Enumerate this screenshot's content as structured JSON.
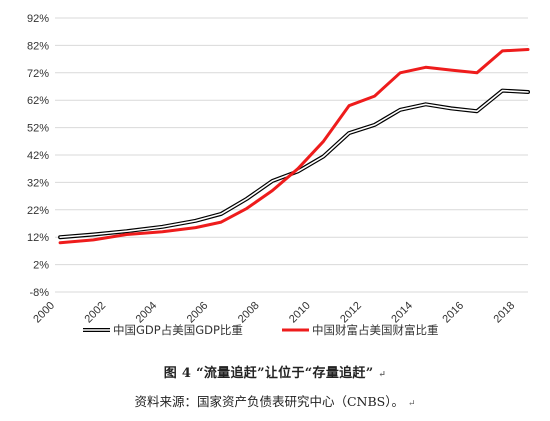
{
  "chart_data": {
    "type": "line",
    "title": "",
    "xlabel": "",
    "ylabel": "",
    "ylim": [
      -8,
      92
    ],
    "yticks": [
      -8,
      2,
      12,
      22,
      32,
      42,
      52,
      62,
      72,
      82,
      92
    ],
    "ytick_labels": [
      "-8%",
      "2%",
      "12%",
      "22%",
      "32%",
      "42%",
      "52%",
      "62%",
      "72%",
      "82%",
      "92%"
    ],
    "xlim": [
      2000,
      2018.5
    ],
    "xticks": [
      2000,
      2002,
      2004,
      2006,
      2008,
      2010,
      2012,
      2014,
      2016,
      2018
    ],
    "xtick_labels": [
      "2000",
      "2002",
      "2004",
      "2006",
      "2008",
      "2010",
      "2012",
      "2014",
      "2016",
      "2018"
    ],
    "grid": "horizontal",
    "legend_position": "bottom",
    "series": [
      {
        "name": "中国GDP占美国GDP比重",
        "style": "double-line",
        "color": "#000000",
        "x": [
          2000.2,
          2001.5,
          2002.8,
          2004.2,
          2005.5,
          2006.5,
          2007.5,
          2008.5,
          2009.5,
          2010.5,
          2011.5,
          2012.5,
          2013.5,
          2014.5,
          2015.5,
          2016.5,
          2017.5,
          2018.5
        ],
        "values": [
          12.0,
          13.0,
          14.2,
          15.8,
          18.0,
          20.5,
          26.0,
          32.5,
          36.0,
          41.5,
          50.0,
          53.0,
          58.5,
          60.5,
          59.0,
          58.0,
          65.5,
          65.0
        ]
      },
      {
        "name": "中国财富占美国财富比重",
        "style": "line",
        "color": "#ee1c1c",
        "x": [
          2000.2,
          2001.5,
          2002.8,
          2004.2,
          2005.5,
          2006.5,
          2007.5,
          2008.5,
          2009.5,
          2010.5,
          2011.5,
          2012.5,
          2013.5,
          2014.5,
          2015.5,
          2016.5,
          2017.5,
          2018.5
        ],
        "values": [
          10.0,
          11.0,
          13.0,
          14.0,
          15.5,
          17.5,
          22.5,
          29.0,
          37.0,
          47.0,
          60.0,
          63.5,
          72.0,
          74.0,
          73.0,
          72.0,
          80.0,
          80.5
        ]
      }
    ]
  },
  "captions": {
    "figure": "图 4 “流量追赶”让位于“存量追赶”",
    "source": "资料来源：国家资产负债表研究中心（CNBS）。",
    "para_mark": "↵"
  },
  "colors": {
    "gdp_line": "#000000",
    "wealth_line": "#ee1c1c",
    "grid": "#d9d9d9"
  }
}
